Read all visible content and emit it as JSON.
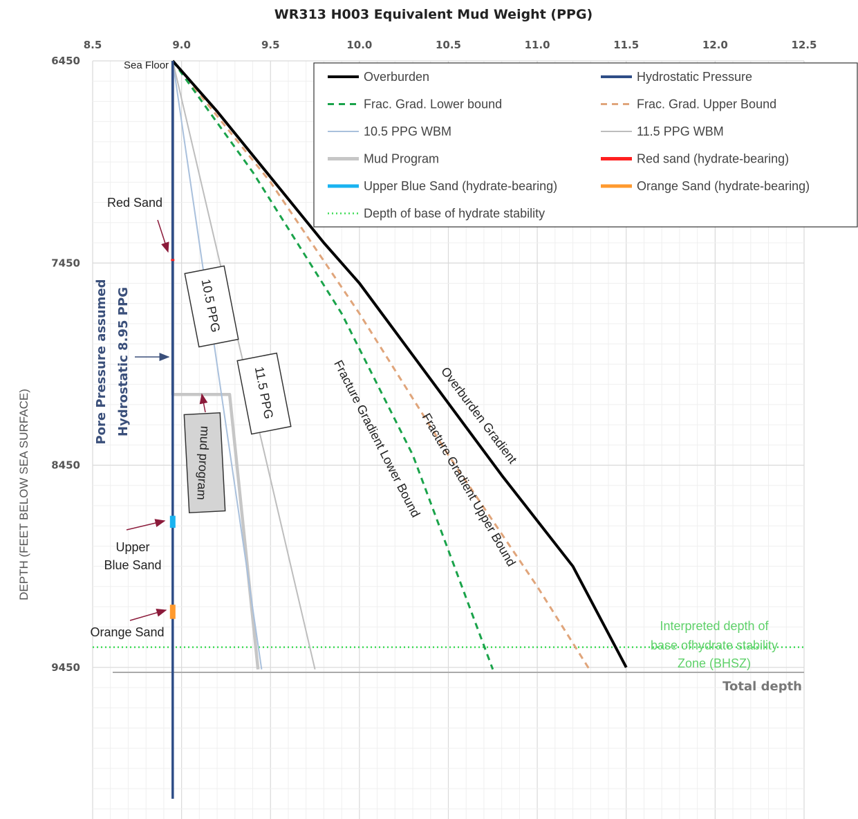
{
  "chart_data": {
    "type": "line",
    "title": "WR313 H003 Equivalent Mud Weight (PPG)",
    "ylabel": "DEPTH (FEET BELOW SEA SURFACE)",
    "xlabel": "",
    "x_axis_position": "top",
    "xlim": [
      8.5,
      12.5
    ],
    "ylim": [
      6450,
      10200
    ],
    "y_inverted": true,
    "x_ticks": [
      "8.5",
      "9.0",
      "9.5",
      "10.0",
      "10.5",
      "11.0",
      "11.5",
      "12.0",
      "12.5"
    ],
    "y_ticks": [
      "6450",
      "7450",
      "8450",
      "9450"
    ],
    "grid": true,
    "legend_position": "top-right",
    "series": [
      {
        "name": "Overburden",
        "color": "#000000",
        "style": "solid",
        "x": [
          8.95,
          9.2,
          9.8,
          10.0,
          10.8,
          11.2,
          11.5
        ],
        "y": [
          6450,
          6700,
          7350,
          7550,
          8500,
          8950,
          9450
        ]
      },
      {
        "name": "Hydrostatic Pressure",
        "color": "#2e4d87",
        "style": "solid",
        "x": [
          8.95,
          8.95
        ],
        "y": [
          6450,
          10100
        ]
      },
      {
        "name": "Frac. Grad. Lower bound",
        "color": "#1aa34a",
        "style": "dashed",
        "x": [
          8.95,
          9.4,
          9.9,
          10.3,
          10.75
        ],
        "y": [
          6450,
          7000,
          7700,
          8400,
          9460
        ]
      },
      {
        "name": "Frac. Grad. Upper Bound",
        "color": "#e0a57b",
        "style": "dashed",
        "x": [
          8.95,
          9.5,
          10.0,
          10.5,
          11.0,
          11.3
        ],
        "y": [
          6450,
          7050,
          7700,
          8400,
          9050,
          9470
        ]
      },
      {
        "name": "10.5 PPG WBM",
        "color": "#a9c0dc",
        "style": "solid",
        "x": [
          8.95,
          9.45
        ],
        "y": [
          6450,
          9460
        ]
      },
      {
        "name": "11.5 PPG WBM",
        "color": "#bdbdbd",
        "style": "solid",
        "x": [
          8.95,
          9.75
        ],
        "y": [
          6450,
          9460
        ]
      },
      {
        "name": "Mud Program",
        "color": "#c6c6c6",
        "style": "solid",
        "x": [
          8.95,
          8.95,
          9.27,
          9.43
        ],
        "y": [
          6450,
          8100,
          8100,
          9460
        ]
      },
      {
        "name": "Red sand (hydrate-bearing)",
        "color": "#ff1f1f",
        "style": "solid",
        "x": [
          8.95,
          8.95
        ],
        "y": [
          7430,
          7440
        ]
      },
      {
        "name": "Upper Blue Sand (hydrate-bearing)",
        "color": "#19b3f0",
        "style": "solid",
        "x": [
          8.95,
          8.95
        ],
        "y": [
          8700,
          8760
        ]
      },
      {
        "name": "Orange Sand (hydrate-bearing)",
        "color": "#ff9a2e",
        "style": "solid",
        "x": [
          8.95,
          8.95
        ],
        "y": [
          9140,
          9210
        ]
      },
      {
        "name": "Depth of base of hydrate stability",
        "color": "#3ddc55",
        "style": "dotted",
        "x": [
          8.5,
          12.5
        ],
        "y": [
          9350,
          9350
        ]
      }
    ],
    "total_depth": 9460,
    "annotations": {
      "sea_floor": "Sea Floor",
      "red_sand": "Red Sand",
      "upper_blue_sand": [
        "Upper",
        "Blue Sand"
      ],
      "orange_sand": "Orange Sand",
      "pore_pressure": [
        "Pore Pressure assumed",
        "Hydrostatic 8.95 PPG"
      ],
      "box_10_5": "10.5 PPG",
      "box_11_5": "11.5 PPG",
      "box_mud": "mud program",
      "overburden_gradient": "Overburden Gradient",
      "frac_lower": "Fracture Gradient Lower Bound",
      "frac_upper": "Fracture Gradient Upper Bound",
      "bhsz": [
        "Interpreted depth of",
        "base ofhydrate stability",
        "Zone (BHSZ)"
      ],
      "total_depth": "Total depth"
    },
    "colors": {
      "annotation_arrow": "#8b1a3a",
      "bhsz_text": "#5fd16a",
      "pore_text": "#3a4f7a",
      "grid_major": "#d9d9d9",
      "grid_minor": "#efefef"
    }
  }
}
